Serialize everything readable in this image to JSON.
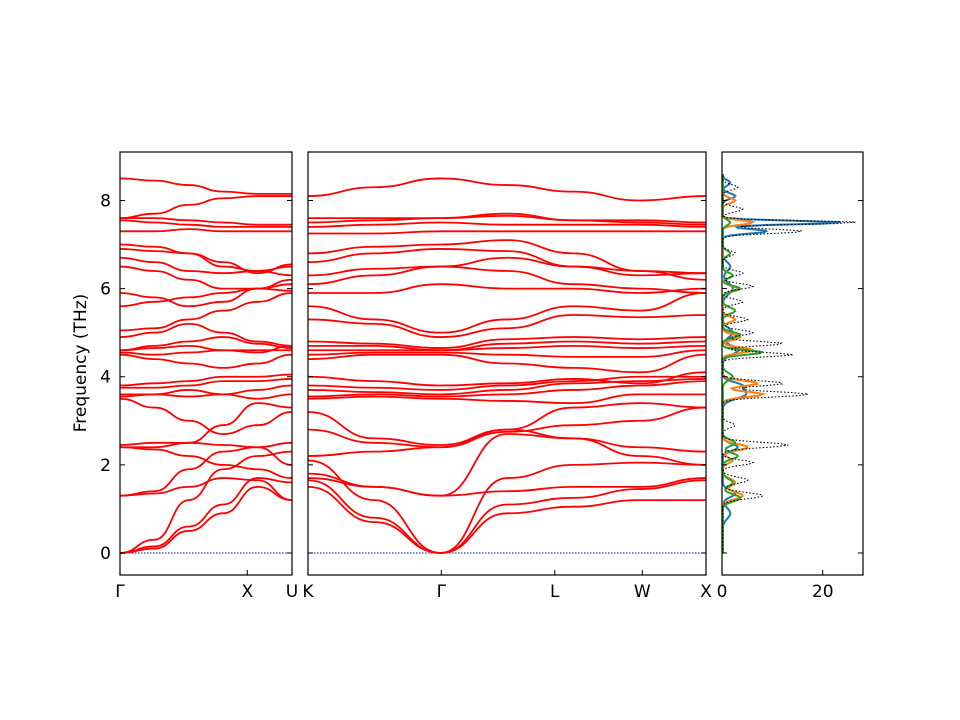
{
  "chart_data": {
    "type": "line",
    "ylabel": "Frequency (THz)",
    "ylim": [
      -0.5,
      9.1
    ],
    "yticks": [
      0,
      2,
      4,
      6,
      8
    ],
    "band_color": "#ff0000",
    "zero_line_color": "#0000cc",
    "panels": [
      {
        "id": "gamma-x-u",
        "xticks": [
          {
            "pos": 0,
            "label": "Γ"
          },
          {
            "pos": 0.74,
            "label": "X"
          },
          {
            "pos": 1.0,
            "label": "U"
          }
        ],
        "bands": [
          [
            0.0,
            0.1,
            0.5,
            0.9,
            1.5,
            1.2
          ],
          [
            0.0,
            0.15,
            0.6,
            1.1,
            1.7,
            1.6
          ],
          [
            0.0,
            0.3,
            1.2,
            1.9,
            2.2,
            2.3
          ],
          [
            1.3,
            1.35,
            1.5,
            1.7,
            1.65,
            1.2
          ],
          [
            1.3,
            1.4,
            1.9,
            2.3,
            2.4,
            2.0
          ],
          [
            2.4,
            2.35,
            2.2,
            2.0,
            1.9,
            1.7
          ],
          [
            2.4,
            2.4,
            2.5,
            2.9,
            3.4,
            3.3
          ],
          [
            2.45,
            2.5,
            2.5,
            2.45,
            2.4,
            2.5
          ],
          [
            3.5,
            3.3,
            3.0,
            2.7,
            2.9,
            3.2
          ],
          [
            3.55,
            3.6,
            3.7,
            3.6,
            3.5,
            3.6
          ],
          [
            3.6,
            3.6,
            3.55,
            3.6,
            3.7,
            3.8
          ],
          [
            3.75,
            3.75,
            3.8,
            3.9,
            3.9,
            3.95
          ],
          [
            3.8,
            3.85,
            3.9,
            4.0,
            4.0,
            4.05
          ],
          [
            4.5,
            4.4,
            4.3,
            4.2,
            4.3,
            4.5
          ],
          [
            4.55,
            4.5,
            4.55,
            4.6,
            4.6,
            4.6
          ],
          [
            4.6,
            4.65,
            4.7,
            4.6,
            4.55,
            4.7
          ],
          [
            4.6,
            4.7,
            4.8,
            4.9,
            4.75,
            4.65
          ],
          [
            4.9,
            5.0,
            5.2,
            5.0,
            4.8,
            4.7
          ],
          [
            5.05,
            5.1,
            5.3,
            5.5,
            5.7,
            5.9
          ],
          [
            5.6,
            5.7,
            5.8,
            5.9,
            6.0,
            5.95
          ],
          [
            5.9,
            5.8,
            5.6,
            5.7,
            6.0,
            6.1
          ],
          [
            6.5,
            6.4,
            6.2,
            6.0,
            6.0,
            6.2
          ],
          [
            6.7,
            6.6,
            6.4,
            6.35,
            6.4,
            6.3
          ],
          [
            6.9,
            6.85,
            6.8,
            6.5,
            6.4,
            6.5
          ],
          [
            7.0,
            6.95,
            6.8,
            6.6,
            6.35,
            6.55
          ],
          [
            7.3,
            7.3,
            7.35,
            7.3,
            7.3,
            7.3
          ],
          [
            7.55,
            7.5,
            7.45,
            7.4,
            7.4,
            7.4
          ],
          [
            7.6,
            7.6,
            7.55,
            7.5,
            7.45,
            7.45
          ],
          [
            7.6,
            7.7,
            7.9,
            8.05,
            8.1,
            8.1
          ],
          [
            8.5,
            8.45,
            8.35,
            8.2,
            8.15,
            8.15
          ]
        ]
      },
      {
        "id": "k-gamma-l-w-x",
        "xticks": [
          {
            "pos": 0,
            "label": "K"
          },
          {
            "pos": 0.335,
            "label": "Γ"
          },
          {
            "pos": 0.62,
            "label": "L"
          },
          {
            "pos": 0.84,
            "label": "W"
          },
          {
            "pos": 1.0,
            "label": "X"
          }
        ],
        "bands": [
          [
            1.5,
            0.7,
            0.0,
            0.9,
            1.05,
            1.2,
            1.2
          ],
          [
            1.65,
            0.8,
            0.0,
            1.1,
            1.25,
            1.45,
            1.65
          ],
          [
            2.1,
            1.2,
            0.0,
            1.7,
            2.0,
            2.05,
            2.0
          ],
          [
            1.7,
            1.5,
            1.3,
            1.4,
            1.5,
            1.5,
            1.7
          ],
          [
            1.8,
            1.5,
            1.3,
            2.7,
            2.6,
            2.4,
            2.3
          ],
          [
            2.2,
            2.3,
            2.4,
            2.8,
            2.6,
            2.2,
            2.0
          ],
          [
            2.8,
            2.5,
            2.4,
            2.75,
            2.9,
            3.0,
            3.3
          ],
          [
            3.2,
            2.6,
            2.45,
            2.8,
            3.3,
            3.4,
            3.3
          ],
          [
            3.5,
            3.55,
            3.5,
            3.45,
            3.4,
            3.6,
            3.6
          ],
          [
            3.55,
            3.6,
            3.55,
            3.6,
            3.7,
            3.8,
            3.9
          ],
          [
            3.7,
            3.65,
            3.6,
            3.7,
            3.85,
            3.9,
            3.95
          ],
          [
            3.8,
            3.75,
            3.7,
            3.8,
            3.9,
            4.0,
            4.0
          ],
          [
            4.0,
            3.9,
            3.8,
            3.85,
            3.95,
            3.85,
            4.1
          ],
          [
            4.4,
            4.5,
            4.5,
            4.3,
            4.2,
            4.1,
            4.5
          ],
          [
            4.5,
            4.55,
            4.55,
            4.5,
            4.45,
            4.45,
            4.6
          ],
          [
            4.6,
            4.6,
            4.6,
            4.65,
            4.7,
            4.65,
            4.7
          ],
          [
            4.7,
            4.7,
            4.6,
            4.75,
            4.8,
            4.75,
            4.8
          ],
          [
            4.8,
            4.75,
            4.65,
            4.85,
            4.9,
            4.85,
            4.9
          ],
          [
            5.3,
            5.2,
            4.9,
            5.1,
            5.4,
            5.35,
            5.4
          ],
          [
            5.6,
            5.3,
            5.0,
            5.3,
            5.6,
            5.5,
            5.9
          ],
          [
            5.9,
            5.9,
            6.1,
            6.0,
            6.0,
            5.9,
            6.0
          ],
          [
            6.1,
            6.3,
            6.5,
            6.4,
            6.1,
            6.0,
            5.9
          ],
          [
            6.3,
            6.45,
            6.5,
            6.7,
            6.5,
            6.3,
            6.35
          ],
          [
            6.6,
            6.8,
            6.9,
            6.85,
            6.5,
            6.4,
            6.35
          ],
          [
            6.8,
            6.95,
            7.0,
            7.1,
            6.8,
            6.4,
            6.2
          ],
          [
            7.25,
            7.25,
            7.3,
            7.3,
            7.3,
            7.3,
            7.3
          ],
          [
            7.4,
            7.45,
            7.5,
            7.45,
            7.45,
            7.45,
            7.4
          ],
          [
            7.5,
            7.55,
            7.6,
            7.65,
            7.55,
            7.5,
            7.45
          ],
          [
            7.6,
            7.6,
            7.6,
            7.7,
            7.55,
            7.55,
            7.5
          ],
          [
            8.1,
            8.3,
            8.5,
            8.35,
            8.2,
            8.0,
            8.1
          ]
        ]
      }
    ],
    "dos": {
      "xticks": [
        0,
        20
      ],
      "xlim": [
        0,
        28
      ],
      "series": [
        {
          "color": "#1f77b4",
          "style": "solid",
          "peaks": [
            [
              0.9,
              1.5,
              0.12
            ],
            [
              1.35,
              2.5,
              0.08
            ],
            [
              2.4,
              3.0,
              0.08
            ],
            [
              3.6,
              4.5,
              0.1
            ],
            [
              3.8,
              3.5,
              0.08
            ],
            [
              4.6,
              3.0,
              0.1
            ],
            [
              5.0,
              2.0,
              0.1
            ],
            [
              6.0,
              2.0,
              0.12
            ],
            [
              6.5,
              1.5,
              0.1
            ],
            [
              7.3,
              9.0,
              0.05
            ],
            [
              7.5,
              24.0,
              0.04
            ],
            [
              8.1,
              2.5,
              0.06
            ],
            [
              8.4,
              1.5,
              0.06
            ]
          ]
        },
        {
          "color": "#ff7f0e",
          "style": "solid",
          "peaks": [
            [
              1.3,
              4.0,
              0.08
            ],
            [
              1.6,
              2.5,
              0.08
            ],
            [
              2.4,
              5.0,
              0.07
            ],
            [
              2.1,
              2.0,
              0.06
            ],
            [
              3.6,
              8.0,
              0.06
            ],
            [
              3.85,
              7.0,
              0.06
            ],
            [
              4.6,
              6.0,
              0.06
            ],
            [
              4.9,
              3.5,
              0.06
            ],
            [
              5.3,
              2.5,
              0.06
            ],
            [
              6.0,
              3.0,
              0.06
            ],
            [
              6.3,
              2.0,
              0.06
            ],
            [
              7.5,
              6.0,
              0.05
            ],
            [
              8.0,
              2.5,
              0.06
            ]
          ]
        },
        {
          "color": "#2ca02c",
          "style": "solid",
          "peaks": [
            [
              1.25,
              3.5,
              0.08
            ],
            [
              1.6,
              2.0,
              0.08
            ],
            [
              2.2,
              3.0,
              0.07
            ],
            [
              2.5,
              2.5,
              0.07
            ],
            [
              4.0,
              2.0,
              0.08
            ],
            [
              4.55,
              8.0,
              0.05
            ],
            [
              4.95,
              3.5,
              0.06
            ],
            [
              5.5,
              2.5,
              0.07
            ],
            [
              6.0,
              3.5,
              0.06
            ],
            [
              6.3,
              2.0,
              0.06
            ],
            [
              6.8,
              1.5,
              0.06
            ],
            [
              7.5,
              1.5,
              0.06
            ]
          ]
        },
        {
          "color": "#000000",
          "style": "dotted",
          "peaks": [
            [
              1.3,
              8.0,
              0.07
            ],
            [
              1.65,
              5.0,
              0.07
            ],
            [
              2.05,
              6.0,
              0.06
            ],
            [
              2.45,
              13.0,
              0.06
            ],
            [
              2.9,
              2.5,
              0.06
            ],
            [
              3.6,
              17.0,
              0.06
            ],
            [
              3.85,
              12.0,
              0.06
            ],
            [
              4.5,
              14.0,
              0.05
            ],
            [
              4.75,
              12.0,
              0.05
            ],
            [
              5.0,
              6.0,
              0.06
            ],
            [
              5.3,
              5.0,
              0.06
            ],
            [
              5.7,
              4.0,
              0.06
            ],
            [
              6.05,
              6.0,
              0.06
            ],
            [
              6.35,
              4.0,
              0.06
            ],
            [
              6.8,
              2.5,
              0.06
            ],
            [
              7.3,
              16.0,
              0.05
            ],
            [
              7.5,
              27.0,
              0.04
            ],
            [
              7.8,
              4.0,
              0.06
            ],
            [
              8.3,
              3.0,
              0.06
            ]
          ]
        }
      ]
    }
  }
}
